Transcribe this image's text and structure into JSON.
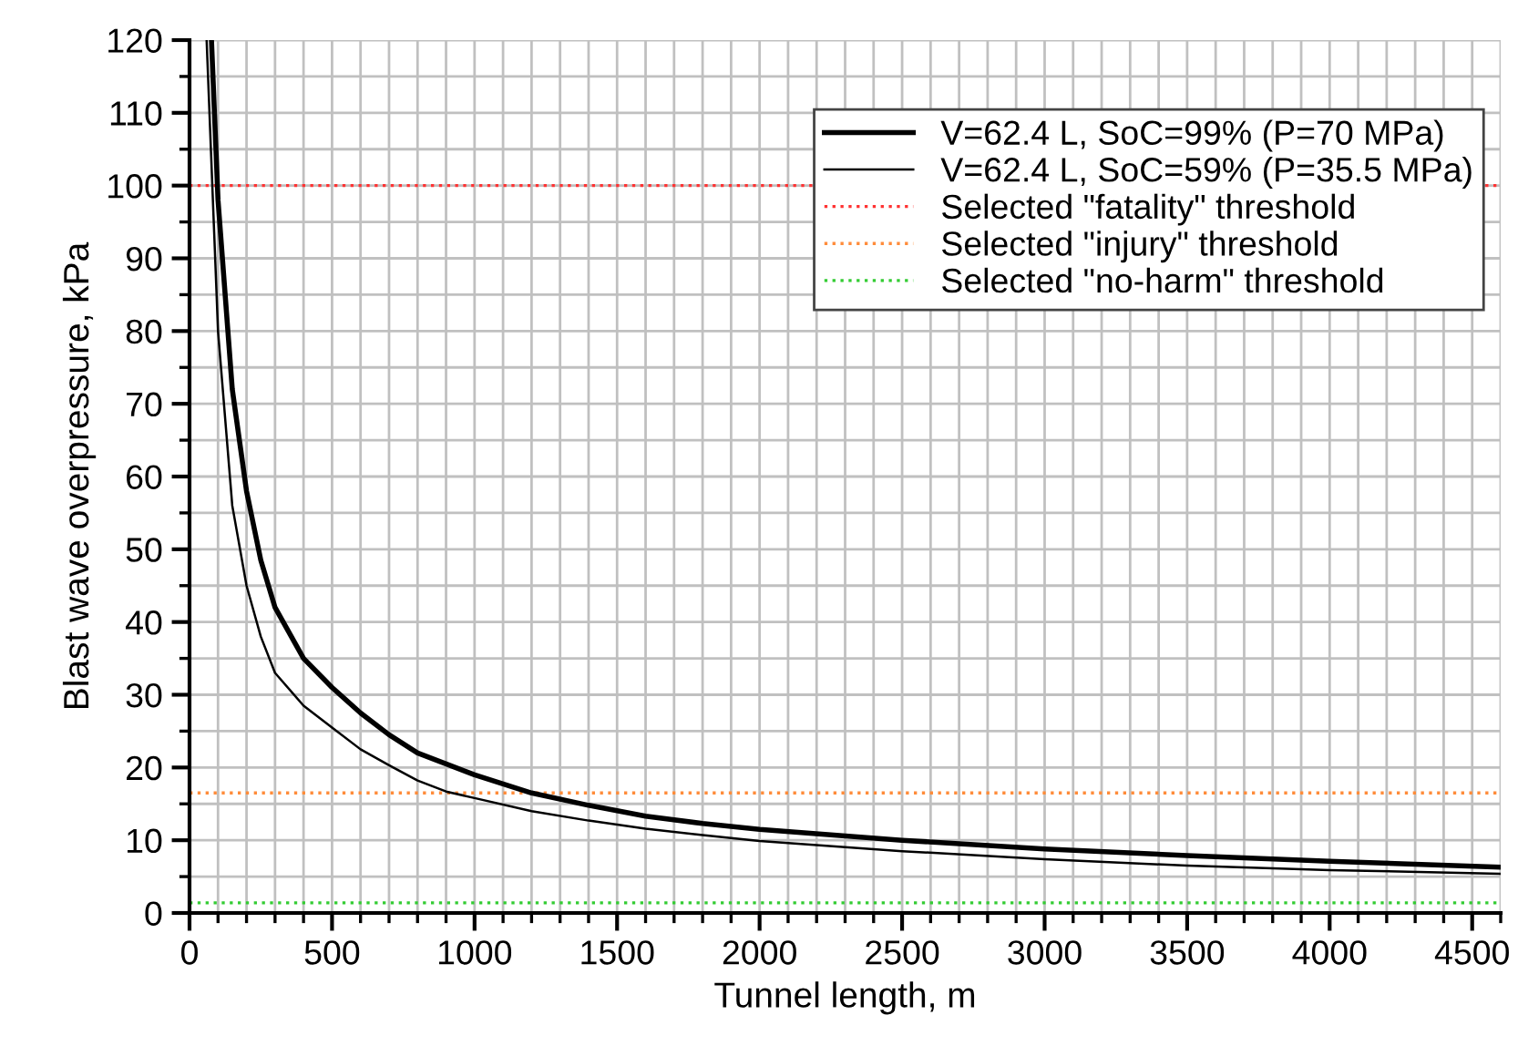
{
  "chart_data": {
    "type": "line",
    "xlabel": "Tunnel length, m",
    "ylabel": "Blast wave overpressure, kPa",
    "xlim": [
      0,
      4600
    ],
    "ylim": [
      0,
      120
    ],
    "xticks": [
      0,
      {
        "value": 100,
        "label": null
      },
      {
        "value": 200,
        "label": null
      },
      {
        "value": 300,
        "label": null
      },
      {
        "value": 400,
        "label": null
      },
      500,
      {
        "value": 600,
        "label": null
      },
      {
        "value": 700,
        "label": null
      },
      {
        "value": 800,
        "label": null
      },
      {
        "value": 900,
        "label": null
      },
      1000,
      {
        "value": 1100,
        "label": null
      },
      {
        "value": 1200,
        "label": null
      },
      {
        "value": 1300,
        "label": null
      },
      {
        "value": 1400,
        "label": null
      },
      1500,
      {
        "value": 1600,
        "label": null
      },
      {
        "value": 1700,
        "label": null
      },
      {
        "value": 1800,
        "label": null
      },
      {
        "value": 1900,
        "label": null
      },
      2000,
      {
        "value": 2100,
        "label": null
      },
      {
        "value": 2200,
        "label": null
      },
      {
        "value": 2300,
        "label": null
      },
      {
        "value": 2400,
        "label": null
      },
      2500,
      {
        "value": 2600,
        "label": null
      },
      {
        "value": 2700,
        "label": null
      },
      {
        "value": 2800,
        "label": null
      },
      {
        "value": 2900,
        "label": null
      },
      3000,
      {
        "value": 3100,
        "label": null
      },
      {
        "value": 3200,
        "label": null
      },
      {
        "value": 3300,
        "label": null
      },
      {
        "value": 3400,
        "label": null
      },
      3500,
      {
        "value": 3600,
        "label": null
      },
      {
        "value": 3700,
        "label": null
      },
      {
        "value": 3800,
        "label": null
      },
      {
        "value": 3900,
        "label": null
      },
      4000,
      {
        "value": 4100,
        "label": null
      },
      {
        "value": 4200,
        "label": null
      },
      {
        "value": 4300,
        "label": null
      },
      {
        "value": 4400,
        "label": null
      },
      4500,
      {
        "value": 4600,
        "label": null
      }
    ],
    "yticks": [
      0,
      {
        "value": 5,
        "label": null
      },
      10,
      {
        "value": 15,
        "label": null
      },
      20,
      {
        "value": 25,
        "label": null
      },
      30,
      {
        "value": 35,
        "label": null
      },
      40,
      {
        "value": 45,
        "label": null
      },
      50,
      {
        "value": 55,
        "label": null
      },
      60,
      {
        "value": 65,
        "label": null
      },
      70,
      {
        "value": 75,
        "label": null
      },
      80,
      {
        "value": 85,
        "label": null
      },
      90,
      {
        "value": 95,
        "label": null
      },
      100,
      {
        "value": 105,
        "label": null
      },
      110,
      {
        "value": 115,
        "label": null
      },
      120
    ],
    "grid": true,
    "legend": "top right",
    "marker": "none",
    "series": [
      {
        "name": "V=62.4 L, SoC=99% (P=70 MPa)",
        "color": "#000000",
        "line_style": "solid",
        "x": [
          77,
          100,
          150,
          200,
          250,
          300,
          400,
          500,
          600,
          700,
          800,
          900,
          1000,
          1200,
          1400,
          1600,
          1800,
          2000,
          2500,
          3000,
          3500,
          4000,
          4600
        ],
        "values": [
          120,
          98,
          72,
          58,
          48.5,
          42,
          35,
          31,
          27.5,
          24.5,
          22,
          20.5,
          19,
          16.5,
          14.8,
          13.3,
          12.3,
          11.5,
          10,
          8.8,
          7.9,
          7.1,
          6.3
        ]
      },
      {
        "name": "V=62.4 L, SoC=59% (P=35.5 MPa)",
        "color": "#000000",
        "line_style": "solid",
        "x": [
          60,
          100,
          150,
          200,
          250,
          300,
          400,
          500,
          600,
          700,
          800,
          900,
          1000,
          1200,
          1400,
          1600,
          1800,
          2000,
          2500,
          3000,
          3500,
          4000,
          4600
        ],
        "values": [
          120,
          80,
          56,
          45,
          38,
          33,
          28.5,
          25.5,
          22.5,
          20.3,
          18.2,
          16.7,
          15.8,
          14,
          12.7,
          11.6,
          10.7,
          9.9,
          8.5,
          7.4,
          6.5,
          5.9,
          5.4
        ]
      }
    ],
    "ref_lines": [
      {
        "axis": "y",
        "value": 100,
        "label": "Selected \"fatality\" threshold",
        "color": "#ff3333",
        "line_style": "dotted"
      },
      {
        "axis": "y",
        "value": 16.5,
        "label": "Selected \"injury\" threshold",
        "color": "#ff8c3a",
        "line_style": "dotted"
      },
      {
        "axis": "y",
        "value": 1.4,
        "label": "Selected \"no-harm\" threshold",
        "color": "#33cc33",
        "line_style": "dotted"
      }
    ]
  }
}
